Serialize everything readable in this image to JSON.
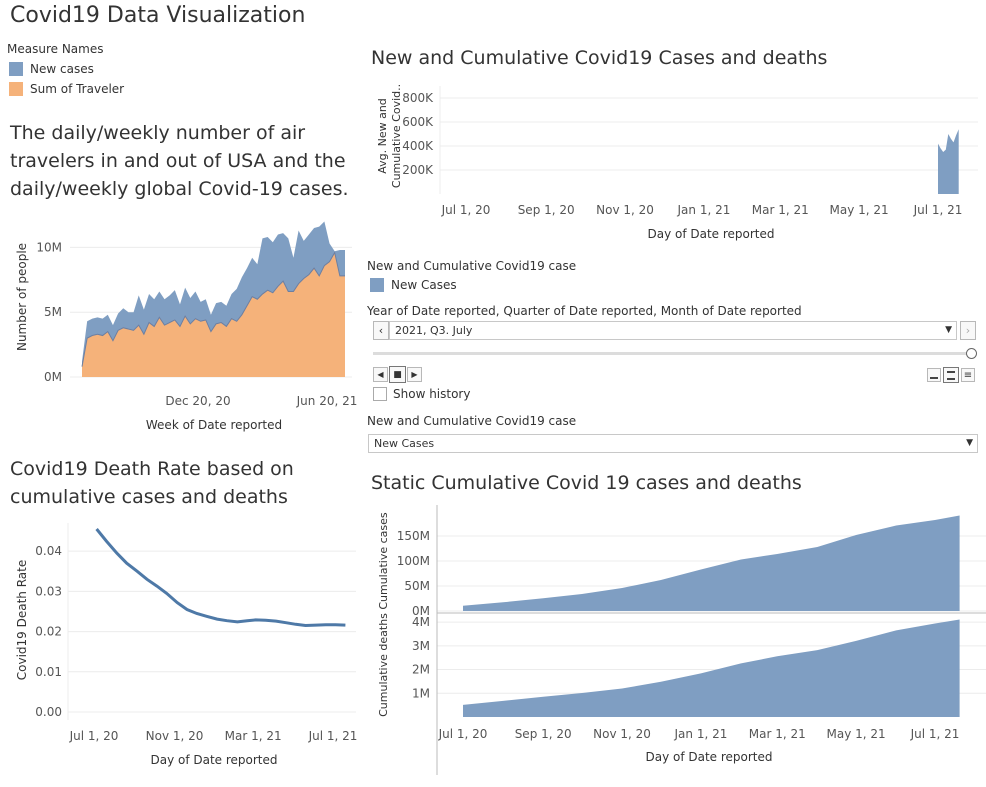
{
  "dashboard_title": "Covid19 Data Visualization",
  "legend": {
    "title": "Measure Names",
    "items": [
      {
        "label": "New cases",
        "color": "#7f9ec2"
      },
      {
        "label": "Sum of Traveler",
        "color": "#f5b27a"
      }
    ]
  },
  "description": "The daily/weekly number of air travelers in and out of USA and the daily/weekly global Covid-19 cases.",
  "top_chart_title": "New and Cumulative Covid19 Cases and deaths",
  "death_rate_title": "Covid19 Death Rate based on cumulative cases and deaths",
  "static_title": "Static Cumulative Covid 19 cases and deaths",
  "controls": {
    "color_legend_title": "New and Cumulative Covid19 case",
    "color_legend_item": "New Cases",
    "color_legend_color": "#7f9ec2",
    "page_title": "Year of Date reported, Quarter of Date reported, Month of Date reported",
    "page_value": "2021, Q3. July",
    "show_history_label": "Show history",
    "param_title": "New and Cumulative Covid19 case",
    "param_value": "New Cases"
  },
  "chart_data": [
    {
      "id": "traveler",
      "type": "area",
      "x_axis_label": "Week of Date reported",
      "y_axis_label": "Number of people",
      "x_ticks": [
        "Dec 20, 20",
        "Jun 20, 21"
      ],
      "y_ticks": [
        "0M",
        "5M",
        "10M"
      ],
      "ylim": [
        0,
        12500000
      ],
      "series": [
        {
          "name": "Sum of Traveler",
          "color": "#f5b27a",
          "values": [
            0.8,
            3.0,
            3.2,
            3.3,
            3.2,
            3.5,
            2.8,
            3.6,
            3.8,
            3.7,
            3.6,
            4.0,
            3.3,
            4.2,
            3.9,
            4.6,
            4.0,
            4.2,
            4.4,
            3.9,
            4.7,
            4.1,
            4.5,
            4.3,
            4.4,
            3.5,
            4.1,
            4.2,
            3.9,
            4.5,
            4.3,
            4.8,
            5.5,
            6.2,
            6.0,
            6.4,
            6.7,
            6.5,
            7.0,
            7.4,
            6.6,
            6.6,
            7.2,
            7.6,
            7.9,
            8.4,
            7.8,
            8.6,
            8.9,
            9.6,
            7.8,
            7.8
          ]
        },
        {
          "name": "New cases",
          "color": "#7f9ec2",
          "values": [
            1.2,
            4.3,
            4.5,
            4.6,
            4.5,
            4.8,
            4.0,
            4.9,
            5.3,
            5.0,
            5.0,
            6.3,
            5.2,
            6.4,
            6.0,
            6.6,
            6.0,
            6.3,
            6.7,
            5.6,
            6.9,
            6.1,
            6.6,
            5.8,
            6.0,
            4.8,
            5.7,
            5.8,
            5.5,
            6.4,
            6.8,
            7.7,
            8.4,
            9.2,
            8.7,
            10.7,
            10.8,
            10.4,
            11.0,
            11.1,
            10.7,
            9.2,
            11.3,
            10.5,
            11.0,
            11.5,
            11.6,
            12.0,
            10.3,
            9.7,
            9.8,
            9.8
          ]
        }
      ]
    },
    {
      "id": "new_cumulative",
      "type": "area",
      "x_axis_label": "Day of Date reported",
      "y_axis_label_line1": "Avg. New and",
      "y_axis_label_line2": "Cumulative Covid..",
      "x_ticks": [
        "Jul 1, 20",
        "Sep 1, 20",
        "Nov 1, 20",
        "Jan 1, 21",
        "Mar 1, 21",
        "May 1, 21",
        "Jul 1, 21"
      ],
      "y_ticks": [
        "200K",
        "400K",
        "600K",
        "800K"
      ],
      "ylim": [
        0,
        900000
      ],
      "series": [
        {
          "name": "New Cases",
          "color": "#7f9ec2",
          "x": [
            "Jul 1, 21",
            "Jul 3, 21",
            "Jul 5, 21",
            "Jul 7, 21",
            "Jul 9, 21",
            "Jul 11, 21",
            "Jul 13, 21",
            "Jul 15, 21",
            "Jul 17, 21"
          ],
          "values": [
            420000,
            380000,
            350000,
            370000,
            500000,
            460000,
            430000,
            490000,
            540000
          ]
        }
      ]
    },
    {
      "id": "death_rate",
      "type": "line",
      "x_axis_label": "Day of Date reported",
      "y_axis_label": "Covid19 Death Rate",
      "x_ticks": [
        "Jul 1, 20",
        "Nov 1, 20",
        "Mar 1, 21",
        "Jul 1, 21"
      ],
      "y_ticks": [
        "0.00",
        "0.01",
        "0.02",
        "0.03",
        "0.04"
      ],
      "ylim": [
        0,
        0.047
      ],
      "series": [
        {
          "name": "Covid19 Death Rate",
          "color": "#4e79a7",
          "x": [
            "Jul 5, 20",
            "Jul 20, 20",
            "Aug 5, 20",
            "Aug 20, 20",
            "Sep 5, 20",
            "Sep 20, 20",
            "Oct 5, 20",
            "Oct 20, 20",
            "Nov 5, 20",
            "Nov 20, 20",
            "Dec 5, 20",
            "Dec 20, 20",
            "Jan 5, 21",
            "Jan 20, 21",
            "Feb 5, 21",
            "Feb 20, 21",
            "Mar 5, 21",
            "Mar 20, 21",
            "Apr 5, 21",
            "Apr 20, 21",
            "May 5, 21",
            "May 20, 21",
            "Jun 5, 21",
            "Jun 20, 21",
            "Jul 5, 21",
            "Jul 20, 21"
          ],
          "values": [
            0.0455,
            0.0425,
            0.0395,
            0.037,
            0.035,
            0.033,
            0.0313,
            0.0295,
            0.0272,
            0.0255,
            0.0245,
            0.0238,
            0.0231,
            0.0227,
            0.0224,
            0.0227,
            0.0229,
            0.0228,
            0.0226,
            0.0222,
            0.0218,
            0.0215,
            0.0216,
            0.0217,
            0.0217,
            0.0216
          ]
        }
      ]
    },
    {
      "id": "static_cumulative",
      "type": "area",
      "x_axis_label": "Day of Date reported",
      "x_ticks": [
        "Jul 1, 20",
        "Sep 1, 20",
        "Nov 1, 20",
        "Jan 1, 21",
        "Mar 1, 21",
        "May 1, 21",
        "Jul 1, 21"
      ],
      "panels": [
        {
          "name": "Cumulative cases",
          "y_axis_label": "Cumulative cases",
          "y_ticks": [
            "0M",
            "50M",
            "100M",
            "150M"
          ],
          "ylim": [
            0,
            200000000
          ],
          "color": "#7f9ec2",
          "x": [
            "Jul 1, 20",
            "Aug 1, 20",
            "Sep 1, 20",
            "Oct 1, 20",
            "Nov 1, 20",
            "Dec 1, 20",
            "Jan 1, 21",
            "Feb 1, 21",
            "Mar 1, 21",
            "Apr 1, 21",
            "May 1, 21",
            "Jun 1, 21",
            "Jul 1, 21",
            "Jul 20, 21"
          ],
          "values": [
            10500000,
            17500000,
            25500000,
            34000000,
            46000000,
            62000000,
            83000000,
            103000000,
            114000000,
            128000000,
            152000000,
            171000000,
            182000000,
            191000000
          ]
        },
        {
          "name": "Cumulative deaths",
          "y_axis_label": "Cumulative deaths",
          "y_ticks": [
            "1M",
            "2M",
            "3M",
            "4M"
          ],
          "ylim": [
            0,
            4300000
          ],
          "color": "#7f9ec2",
          "x": [
            "Jul 1, 20",
            "Aug 1, 20",
            "Sep 1, 20",
            "Oct 1, 20",
            "Nov 1, 20",
            "Dec 1, 20",
            "Jan 1, 21",
            "Feb 1, 21",
            "Mar 1, 21",
            "Apr 1, 21",
            "May 1, 21",
            "Jun 1, 21",
            "Jul 1, 21",
            "Jul 20, 21"
          ],
          "values": [
            510000,
            680000,
            850000,
            1010000,
            1200000,
            1490000,
            1840000,
            2260000,
            2560000,
            2820000,
            3210000,
            3650000,
            3940000,
            4110000
          ]
        }
      ]
    }
  ]
}
